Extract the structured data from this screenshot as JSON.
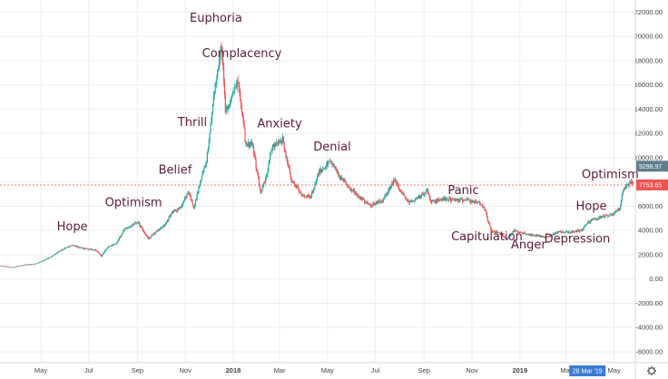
{
  "chart_data": {
    "type": "candlestick",
    "yticks": [
      22000,
      20000,
      18000,
      16000,
      14000,
      12000,
      10000,
      8000,
      6000,
      4000,
      2000,
      0,
      -2000,
      -4000,
      -6000
    ],
    "ytick_labels": [
      "22000.00",
      "20000.00",
      "18000.00",
      "16000.00",
      "14000.00",
      "12000.00",
      "10000.00",
      "8000.00",
      "6000.00",
      "4000.00",
      "2000.00",
      "0.00",
      "-2000.00",
      "-4000.00",
      "-6000.00"
    ],
    "ylim": [
      -6900,
      23000
    ],
    "xlim": [
      "2017-03-10",
      "2019-05-28"
    ],
    "xticks": [
      {
        "date": "2017-05-01",
        "label": "May",
        "bold": false
      },
      {
        "date": "2017-07-01",
        "label": "Jul",
        "bold": false
      },
      {
        "date": "2017-09-01",
        "label": "Sep",
        "bold": false
      },
      {
        "date": "2017-11-01",
        "label": "Nov",
        "bold": false
      },
      {
        "date": "2018-01-01",
        "label": "2018",
        "bold": true
      },
      {
        "date": "2018-03-01",
        "label": "Mar",
        "bold": false
      },
      {
        "date": "2018-05-01",
        "label": "May",
        "bold": false
      },
      {
        "date": "2018-07-01",
        "label": "Jul",
        "bold": false
      },
      {
        "date": "2018-09-01",
        "label": "Sep",
        "bold": false
      },
      {
        "date": "2018-11-01",
        "label": "Nov",
        "bold": false
      },
      {
        "date": "2019-01-01",
        "label": "2019",
        "bold": true
      },
      {
        "date": "2019-03-01",
        "label": "Mar",
        "bold": false
      },
      {
        "date": "2019-05-01",
        "label": "May",
        "bold": false
      }
    ],
    "crosshair_date_label": "28 Mar '19",
    "crosshair_date": "2019-03-28",
    "series": [
      {
        "x": "2017-03-10",
        "y": 1100
      },
      {
        "x": "2017-03-25",
        "y": 950
      },
      {
        "x": "2017-04-10",
        "y": 1150
      },
      {
        "x": "2017-04-25",
        "y": 1250
      },
      {
        "x": "2017-05-10",
        "y": 1700
      },
      {
        "x": "2017-05-25",
        "y": 2300
      },
      {
        "x": "2017-06-10",
        "y": 2800
      },
      {
        "x": "2017-06-25",
        "y": 2500
      },
      {
        "x": "2017-07-10",
        "y": 2400
      },
      {
        "x": "2017-07-17",
        "y": 1900
      },
      {
        "x": "2017-07-25",
        "y": 2600
      },
      {
        "x": "2017-08-05",
        "y": 2900
      },
      {
        "x": "2017-08-15",
        "y": 4100
      },
      {
        "x": "2017-09-01",
        "y": 4700
      },
      {
        "x": "2017-09-15",
        "y": 3300
      },
      {
        "x": "2017-09-25",
        "y": 3900
      },
      {
        "x": "2017-10-05",
        "y": 4400
      },
      {
        "x": "2017-10-15",
        "y": 5500
      },
      {
        "x": "2017-10-25",
        "y": 5800
      },
      {
        "x": "2017-11-05",
        "y": 7200
      },
      {
        "x": "2017-11-12",
        "y": 5900
      },
      {
        "x": "2017-11-20",
        "y": 8000
      },
      {
        "x": "2017-11-28",
        "y": 9800
      },
      {
        "x": "2017-12-07",
        "y": 15000
      },
      {
        "x": "2017-12-12",
        "y": 17000
      },
      {
        "x": "2017-12-17",
        "y": 19500
      },
      {
        "x": "2017-12-22",
        "y": 14000
      },
      {
        "x": "2017-12-28",
        "y": 14500
      },
      {
        "x": "2018-01-06",
        "y": 16500
      },
      {
        "x": "2018-01-12",
        "y": 13800
      },
      {
        "x": "2018-01-17",
        "y": 11000
      },
      {
        "x": "2018-01-25",
        "y": 11200
      },
      {
        "x": "2018-02-05",
        "y": 7000
      },
      {
        "x": "2018-02-12",
        "y": 8500
      },
      {
        "x": "2018-02-20",
        "y": 11000
      },
      {
        "x": "2018-03-05",
        "y": 11500
      },
      {
        "x": "2018-03-15",
        "y": 8300
      },
      {
        "x": "2018-03-30",
        "y": 6900
      },
      {
        "x": "2018-04-10",
        "y": 6800
      },
      {
        "x": "2018-04-20",
        "y": 8800
      },
      {
        "x": "2018-05-05",
        "y": 9700
      },
      {
        "x": "2018-05-15",
        "y": 8500
      },
      {
        "x": "2018-05-30",
        "y": 7500
      },
      {
        "x": "2018-06-10",
        "y": 6800
      },
      {
        "x": "2018-06-25",
        "y": 6100
      },
      {
        "x": "2018-07-10",
        "y": 6400
      },
      {
        "x": "2018-07-25",
        "y": 8200
      },
      {
        "x": "2018-08-05",
        "y": 7000
      },
      {
        "x": "2018-08-12",
        "y": 6300
      },
      {
        "x": "2018-08-25",
        "y": 6700
      },
      {
        "x": "2018-09-05",
        "y": 7300
      },
      {
        "x": "2018-09-10",
        "y": 6300
      },
      {
        "x": "2018-09-25",
        "y": 6600
      },
      {
        "x": "2018-10-10",
        "y": 6500
      },
      {
        "x": "2018-10-25",
        "y": 6450
      },
      {
        "x": "2018-11-10",
        "y": 6350
      },
      {
        "x": "2018-11-18",
        "y": 5600
      },
      {
        "x": "2018-11-25",
        "y": 4000
      },
      {
        "x": "2018-12-05",
        "y": 3800
      },
      {
        "x": "2018-12-15",
        "y": 3300
      },
      {
        "x": "2018-12-25",
        "y": 4000
      },
      {
        "x": "2019-01-10",
        "y": 3700
      },
      {
        "x": "2019-01-25",
        "y": 3550
      },
      {
        "x": "2019-02-05",
        "y": 3450
      },
      {
        "x": "2019-02-20",
        "y": 3900
      },
      {
        "x": "2019-03-05",
        "y": 3850
      },
      {
        "x": "2019-03-20",
        "y": 4000
      },
      {
        "x": "2019-04-02",
        "y": 4900
      },
      {
        "x": "2019-04-15",
        "y": 5100
      },
      {
        "x": "2019-04-28",
        "y": 5300
      },
      {
        "x": "2019-05-08",
        "y": 5800
      },
      {
        "x": "2019-05-13",
        "y": 7500
      },
      {
        "x": "2019-05-18",
        "y": 7700
      },
      {
        "x": "2019-05-22",
        "y": 8000
      },
      {
        "x": "2019-05-25",
        "y": 7753.65
      }
    ],
    "last_price": 7753.65,
    "last_price_label": "7753.65",
    "crosshair_price": 9298.97,
    "crosshair_price_label": "9298.97",
    "annotations": [
      {
        "text": "Hope",
        "x": "2017-06-10",
        "y": 4000
      },
      {
        "text": "Optimism",
        "x": "2017-08-27",
        "y": 6000
      },
      {
        "text": "Belief",
        "x": "2017-10-19",
        "y": 8700
      },
      {
        "text": "Thrill",
        "x": "2017-11-10",
        "y": 12600
      },
      {
        "text": "Euphoria",
        "x": "2017-12-10",
        "y": 21200
      },
      {
        "text": "Complacency",
        "x": "2018-01-12",
        "y": 18300
      },
      {
        "text": "Anxiety",
        "x": "2018-03-01",
        "y": 12500
      },
      {
        "text": "Denial",
        "x": "2018-05-07",
        "y": 10600
      },
      {
        "text": "Panic",
        "x": "2018-10-21",
        "y": 7000
      },
      {
        "text": "Capitulation",
        "x": "2018-11-20",
        "y": 3200
      },
      {
        "text": "Anger",
        "x": "2019-01-12",
        "y": 2500
      },
      {
        "text": "Depression",
        "x": "2019-03-15",
        "y": 3000
      },
      {
        "text": "Hope",
        "x": "2019-04-02",
        "y": 5700
      },
      {
        "text": "Optimism",
        "x": "2019-04-26",
        "y": 8300
      }
    ],
    "colors": {
      "up": "#26a69a",
      "down": "#ef5350",
      "price_line": "#ef5350",
      "crosshair_tag": "#607d8b",
      "date_tag": "#3a7bd5",
      "annotation": "#5a1a3a",
      "grid": "#eeeeee",
      "axis_line": "#d8d8d8"
    },
    "grid": true
  }
}
